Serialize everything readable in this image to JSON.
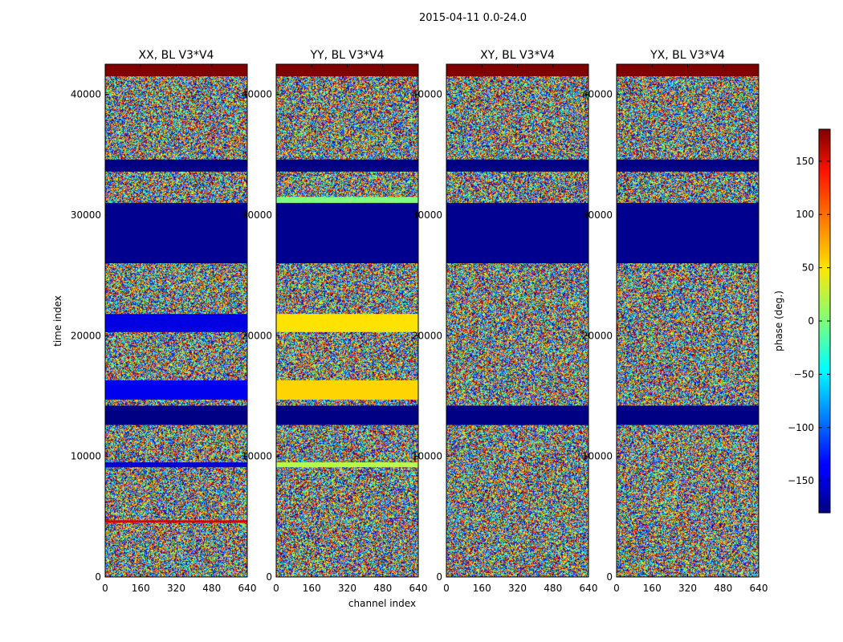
{
  "chart_data": {
    "type": "heatmap",
    "suptitle": "2015-04-11 0.0-24.0",
    "xlabel": "channel index",
    "ylabel": "time index",
    "xlim": [
      0,
      640
    ],
    "ylim": [
      0,
      42500
    ],
    "xticks": [
      0,
      160,
      320,
      480,
      640
    ],
    "yticks": [
      0,
      10000,
      20000,
      30000,
      40000
    ],
    "colormap": "jet",
    "colorbar": {
      "label": "phase (deg.)",
      "range": [
        -180,
        180
      ],
      "ticks": [
        -150,
        -100,
        -50,
        0,
        50,
        100,
        150
      ],
      "tick_labels": [
        "−150",
        "−100",
        "−50",
        "0",
        "50",
        "100",
        "150"
      ]
    },
    "panels": [
      {
        "title": "XX, BL V3*V4",
        "ytick_labels": [
          "0",
          "10000",
          "20000",
          "30000",
          "40000"
        ],
        "bands": [
          {
            "t0": 41500,
            "t1": 42500,
            "phase": 180
          },
          {
            "t0": 33600,
            "t1": 34600,
            "phase": -178
          },
          {
            "t0": 26000,
            "t1": 31000,
            "phase": -175
          },
          {
            "t0": 20300,
            "t1": 21800,
            "phase": -145
          },
          {
            "t0": 14700,
            "t1": 16300,
            "phase": -140
          },
          {
            "t0": 12600,
            "t1": 14200,
            "phase": -178
          },
          {
            "t0": 9100,
            "t1": 9500,
            "phase": -150
          },
          {
            "t0": 4500,
            "t1": 4700,
            "phase": 150
          }
        ]
      },
      {
        "title": "YY, BL V3*V4",
        "ytick_labels": [
          "0",
          "10000",
          "20000",
          "30000",
          "40000"
        ],
        "bands": [
          {
            "t0": 41500,
            "t1": 42500,
            "phase": 180
          },
          {
            "t0": 33600,
            "t1": 34600,
            "phase": -178
          },
          {
            "t0": 31000,
            "t1": 31500,
            "phase": 0
          },
          {
            "t0": 26000,
            "t1": 31000,
            "phase": -175
          },
          {
            "t0": 20300,
            "t1": 21800,
            "phase": 55
          },
          {
            "t0": 14700,
            "t1": 16300,
            "phase": 60
          },
          {
            "t0": 12600,
            "t1": 14200,
            "phase": -178
          },
          {
            "t0": 9100,
            "t1": 9500,
            "phase": 20
          }
        ]
      },
      {
        "title": "XY, BL V3*V4",
        "ytick_labels": [
          "0",
          "10000",
          "20000",
          "30000",
          "40000"
        ],
        "bands": [
          {
            "t0": 41500,
            "t1": 42500,
            "phase": 180
          },
          {
            "t0": 33600,
            "t1": 34600,
            "phase": -178
          },
          {
            "t0": 26000,
            "t1": 31000,
            "phase": -175
          },
          {
            "t0": 12600,
            "t1": 14200,
            "phase": -178
          }
        ]
      },
      {
        "title": "YX, BL V3*V4",
        "ytick_labels": [
          "0",
          "10000",
          "20000",
          "30000",
          "40000"
        ],
        "bands": [
          {
            "t0": 41500,
            "t1": 42500,
            "phase": 180
          },
          {
            "t0": 33600,
            "t1": 34600,
            "phase": -178
          },
          {
            "t0": 26000,
            "t1": 31000,
            "phase": -175
          },
          {
            "t0": 12600,
            "t1": 14200,
            "phase": -178
          }
        ]
      }
    ]
  }
}
